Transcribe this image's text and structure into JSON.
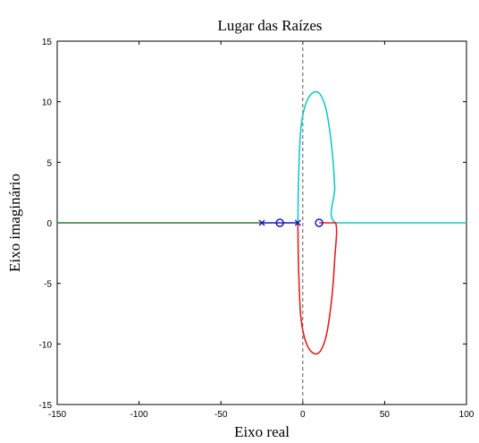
{
  "chart_data": {
    "type": "line",
    "title": "Lugar das Raízes",
    "xlabel": "Eixo real",
    "ylabel": "Eixo imaginário",
    "xlim": [
      -150,
      100
    ],
    "ylim": [
      -15,
      15
    ],
    "xticks": [
      -150,
      -100,
      -50,
      0,
      50,
      100
    ],
    "yticks": [
      -15,
      -10,
      -5,
      0,
      5,
      10,
      15
    ],
    "xtick_labels": [
      "-150",
      "-100",
      "-50",
      "0",
      "50",
      "100"
    ],
    "ytick_labels": [
      "-15",
      "-10",
      "-5",
      "0",
      "5",
      "10",
      "15"
    ],
    "grid": false,
    "legend": "none",
    "imaginary_axis": {
      "x": 0,
      "style": "dashed"
    },
    "series": [
      {
        "color": "#2e7d32",
        "values": [
          [
            -150,
            0
          ],
          [
            -25,
            0
          ]
        ]
      },
      {
        "color": "#1a1ab8",
        "values": [
          [
            -25,
            0
          ],
          [
            -14,
            0
          ]
        ]
      },
      {
        "color": "#1a1ab8",
        "values": [
          [
            -3,
            0
          ],
          [
            -14,
            0
          ]
        ]
      },
      {
        "color": "#18c8c8",
        "values": [
          [
            -3,
            0
          ],
          [
            -2.5,
            4
          ],
          [
            -1,
            8
          ],
          [
            3,
            10.2
          ],
          [
            9,
            10.8
          ],
          [
            14,
            9.5
          ],
          [
            17.5,
            6.5
          ],
          [
            19.5,
            3
          ],
          [
            20,
            0
          ],
          [
            55,
            0
          ],
          [
            100,
            0
          ]
        ]
      },
      {
        "color": "#e02020",
        "values": [
          [
            -3,
            0
          ],
          [
            -2.5,
            -4
          ],
          [
            -1,
            -8
          ],
          [
            3,
            -10.2
          ],
          [
            9,
            -10.8
          ],
          [
            14,
            -9.5
          ],
          [
            17.5,
            -6.5
          ],
          [
            19.5,
            -3
          ],
          [
            20,
            0
          ],
          [
            10,
            0
          ]
        ]
      }
    ],
    "poles": [
      [
        -25,
        0
      ],
      [
        -3,
        0
      ]
    ],
    "zeros": [
      [
        -14,
        0
      ],
      [
        10,
        0
      ]
    ],
    "marker_color": "#1a1ab8"
  }
}
